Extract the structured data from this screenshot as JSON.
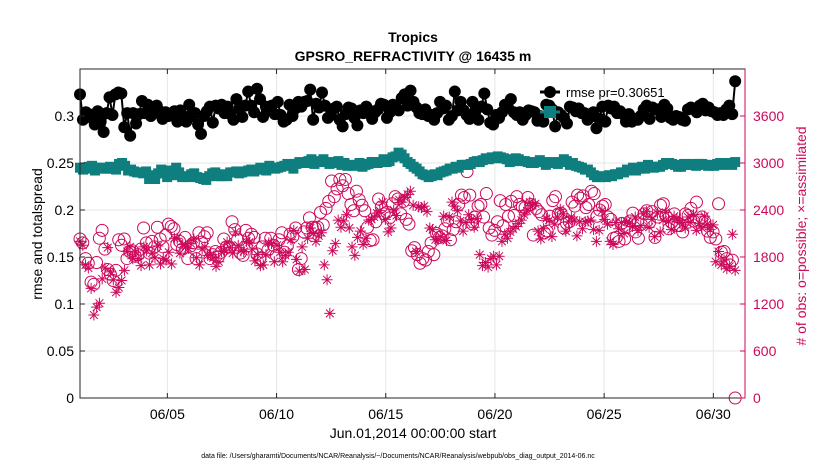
{
  "chart_data": {
    "type": "line",
    "title": "Tropics",
    "subtitle": "GPSRO_REFRACTIVITY @ 16435 m",
    "xlabel": "Jun.01,2014 00:00:00 start",
    "ylabel_left": "rmse and totalspread",
    "ylabel_right": "# of obs: o=possible; ×=assimilated",
    "footnote": "data file: /Users/gharamti/Documents/NCAR/Reanalysis/~/Documents/NCAR/Reanalysis/webpub/obs_diag_output_2014-06.nc",
    "xlim": [
      1.0,
      31.45
    ],
    "ylim_left": [
      0,
      0.35
    ],
    "ylim_right": [
      0,
      4200
    ],
    "x_ticks": [
      5,
      10,
      15,
      20,
      25,
      30
    ],
    "x_tick_labels": [
      "06/05",
      "06/10",
      "06/15",
      "06/20",
      "06/25",
      "06/30"
    ],
    "y_left_ticks": [
      0,
      0.05,
      0.1,
      0.15,
      0.2,
      0.25,
      0.3
    ],
    "y_left_tick_labels": [
      "0",
      "0.05",
      "0.1",
      "0.15",
      "0.2",
      "0.25",
      "0.3"
    ],
    "y_right_ticks": [
      0,
      600,
      1200,
      1800,
      2400,
      3000,
      3600
    ],
    "y_right_tick_labels": [
      "0",
      "600",
      "1200",
      "1800",
      "2400",
      "3000",
      "3600"
    ],
    "legend_position": "top-right",
    "series": [
      {
        "name": "rmse pr=0.30651",
        "legend_label": "rmse pr=0.30651",
        "color": "#000000",
        "marker": "circle-filled",
        "axis": "left",
        "values": [
          0.323,
          0.296,
          0.304,
          0.302,
          0.298,
          0.291,
          0.305,
          0.294,
          0.283,
          0.303,
          0.32,
          0.301,
          0.323,
          0.325,
          0.324,
          0.288,
          0.303,
          0.279,
          0.303,
          0.292,
          0.302,
          0.316,
          0.303,
          0.312,
          0.3,
          0.303,
          0.311,
          0.305,
          0.297,
          0.304,
          0.3,
          0.302,
          0.305,
          0.294,
          0.306,
          0.3,
          0.294,
          0.312,
          0.3,
          0.303,
          0.291,
          0.281,
          0.3,
          0.305,
          0.31,
          0.293,
          0.311,
          0.308,
          0.312,
          0.303,
          0.31,
          0.302,
          0.296,
          0.318,
          0.308,
          0.299,
          0.311,
          0.326,
          0.311,
          0.304,
          0.329,
          0.318,
          0.299,
          0.31,
          0.306,
          0.311,
          0.302,
          0.315,
          0.301,
          0.294,
          0.296,
          0.312,
          0.3,
          0.308,
          0.315,
          0.31,
          0.315,
          0.316,
          0.328,
          0.296,
          0.313,
          0.309,
          0.325,
          0.311,
          0.298,
          0.301,
          0.308,
          0.31,
          0.296,
          0.289,
          0.302,
          0.309,
          0.308,
          0.298,
          0.29,
          0.306,
          0.303,
          0.31,
          0.306,
          0.297,
          0.304,
          0.307,
          0.313,
          0.312,
          0.298,
          0.304,
          0.312,
          0.309,
          0.306,
          0.319,
          0.323,
          0.311,
          0.327,
          0.315,
          0.309,
          0.303,
          0.302,
          0.307,
          0.3,
          0.301,
          0.296,
          0.303,
          0.315,
          0.308,
          0.311,
          0.296,
          0.3,
          0.326,
          0.306,
          0.315,
          0.306,
          0.301,
          0.297,
          0.315,
          0.306,
          0.296,
          0.31,
          0.324,
          0.307,
          0.293,
          0.291,
          0.301,
          0.298,
          0.304,
          0.312,
          0.309,
          0.318,
          0.304,
          0.301,
          0.304,
          0.296,
          0.301,
          0.306,
          0.305,
          0.304,
          0.295,
          0.3,
          0.294,
          0.312,
          0.311,
          0.307,
          0.289,
          0.304,
          0.301,
          0.298,
          0.292,
          0.31,
          0.309,
          0.305,
          0.308,
          0.303,
          0.303,
          0.296,
          0.299,
          0.304,
          0.287,
          0.297,
          0.31,
          0.294,
          0.311,
          0.308,
          0.31,
          0.303,
          0.305,
          0.302,
          0.294,
          0.302,
          0.294,
          0.297,
          0.296,
          0.3,
          0.307,
          0.311,
          0.297,
          0.309,
          0.307,
          0.307,
          0.299,
          0.312,
          0.308,
          0.298,
          0.296,
          0.3,
          0.299,
          0.296,
          0.295,
          0.307,
          0.309,
          0.307,
          0.304,
          0.311,
          0.313,
          0.306,
          0.309,
          0.305,
          0.304,
          0.301,
          0.303,
          0.301,
          0.307,
          0.311,
          0.302,
          0.337
        ]
      },
      {
        "name": "totalspread",
        "color": "#0e7e7e",
        "marker": "square-filled",
        "axis": "left",
        "values": [
          0.245,
          0.243,
          0.244,
          0.246,
          0.247,
          0.242,
          0.245,
          0.245,
          0.244,
          0.244,
          0.246,
          0.244,
          0.243,
          0.249,
          0.25,
          0.247,
          0.242,
          0.243,
          0.241,
          0.24,
          0.24,
          0.239,
          0.241,
          0.233,
          0.237,
          0.233,
          0.239,
          0.243,
          0.239,
          0.235,
          0.242,
          0.237,
          0.245,
          0.24,
          0.235,
          0.236,
          0.235,
          0.238,
          0.239,
          0.235,
          0.234,
          0.233,
          0.232,
          0.236,
          0.239,
          0.24,
          0.236,
          0.236,
          0.238,
          0.236,
          0.24,
          0.24,
          0.241,
          0.239,
          0.24,
          0.241,
          0.242,
          0.243,
          0.241,
          0.243,
          0.245,
          0.243,
          0.242,
          0.247,
          0.245,
          0.244,
          0.245,
          0.246,
          0.247,
          0.249,
          0.248,
          0.244,
          0.249,
          0.251,
          0.25,
          0.25,
          0.252,
          0.254,
          0.249,
          0.251,
          0.252,
          0.254,
          0.251,
          0.249,
          0.25,
          0.251,
          0.252,
          0.248,
          0.25,
          0.247,
          0.248,
          0.247,
          0.248,
          0.25,
          0.246,
          0.248,
          0.249,
          0.251,
          0.251,
          0.25,
          0.251,
          0.254,
          0.251,
          0.252,
          0.256,
          0.257,
          0.261,
          0.259,
          0.255,
          0.251,
          0.249,
          0.246,
          0.244,
          0.241,
          0.238,
          0.237,
          0.235,
          0.236,
          0.238,
          0.237,
          0.24,
          0.241,
          0.242,
          0.244,
          0.244,
          0.246,
          0.245,
          0.248,
          0.248,
          0.248,
          0.249,
          0.251,
          0.252,
          0.251,
          0.253,
          0.255,
          0.254,
          0.256,
          0.255,
          0.257,
          0.256,
          0.255,
          0.254,
          0.251,
          0.252,
          0.255,
          0.254,
          0.252,
          0.252,
          0.251,
          0.25,
          0.25,
          0.251,
          0.253,
          0.251,
          0.248,
          0.25,
          0.251,
          0.25,
          0.249,
          0.251,
          0.254,
          0.252,
          0.248,
          0.25,
          0.247,
          0.246,
          0.245,
          0.243,
          0.243,
          0.24,
          0.237,
          0.235,
          0.235,
          0.236,
          0.235,
          0.237,
          0.236,
          0.238,
          0.238,
          0.24,
          0.24,
          0.243,
          0.242,
          0.245,
          0.242,
          0.244,
          0.246,
          0.244,
          0.248,
          0.246,
          0.245,
          0.246,
          0.246,
          0.248,
          0.25,
          0.25,
          0.249,
          0.248,
          0.246,
          0.246,
          0.249,
          0.248,
          0.248,
          0.249,
          0.247,
          0.249,
          0.249,
          0.248,
          0.247,
          0.248,
          0.247,
          0.249,
          0.25,
          0.248,
          0.25,
          0.249,
          0.248,
          0.251
        ]
      },
      {
        "name": "# of obs possible",
        "color": "#cc0a5b",
        "marker": "circle-open",
        "axis": "right",
        "values": [
          2030,
          1980,
          1780,
          1720,
          1480,
          1450,
          1730,
          2040,
          2140,
          1900,
          1640,
          1580,
          1500,
          1630,
          2020,
          1950,
          2030,
          1780,
          1870,
          1880,
          1810,
          1830,
          1900,
          2170,
          1980,
          1850,
          2000,
          1930,
          2180,
          2030,
          1930,
          2080,
          2220,
          2190,
          2160,
          1960,
          2000,
          1900,
          2050,
          1780,
          1940,
          1980,
          1780,
          2110,
          1990,
          2060,
          2110,
          1780,
          1830,
          1870,
          1800,
          1860,
          2030,
          1930,
          1930,
          2250,
          2150,
          2020,
          1850,
          1820,
          2140,
          2040,
          2090,
          2050,
          1840,
          1780,
          1930,
          2040,
          1890,
          2040,
          1950,
          1820,
          2020,
          2110,
          1860,
          1940,
          2090,
          2060,
          2170,
          1640,
          1780,
          2120,
          2170,
          2300,
          2180,
          2170,
          2180,
          2370,
          2210,
          2420,
          2510,
          2770,
          2570,
          2670,
          2790,
          2710,
          2790,
          2610,
          2470,
          2390,
          2640,
          2530,
          2460,
          2390,
          2180,
          2010,
          2020,
          2250,
          2540,
          2440,
          2350,
          2370,
          2300,
          2480,
          2570,
          2540,
          2350,
          2510,
          2280,
          2220,
          1880,
          1920,
          1830,
          1720,
          1780,
          1760,
          1870,
          1980,
          1830,
          2100,
          2050,
          2070,
          2160,
          2260,
          2020,
          2150,
          2250,
          2470,
          2590,
          2560,
          2890,
          2590,
          2220,
          2310,
          2450,
          2470,
          2310,
          2610,
          2170,
          2080,
          2140,
          2250,
          2520,
          2200,
          2470,
          2320,
          2510,
          2330,
          2570,
          2470,
          2440,
          2430,
          2560,
          2470,
          2080,
          2420,
          2380,
          2340,
          2110,
          2130,
          2320,
          2520,
          2570,
          2350,
          2360,
          2170,
          2230,
          2250,
          2500,
          2450,
          2590,
          2550,
          2580,
          2430,
          2470,
          2640,
          2610,
          2320,
          2400,
          2450,
          2470,
          2310,
          2280,
          2040,
          2050,
          2000,
          2230,
          2030,
          2190,
          2260,
          2360,
          2120,
          2040,
          2220,
          2350,
          2390,
          2240,
          2380,
          2050,
          2310,
          2460,
          2480,
          2320,
          2160,
          2240,
          2350,
          2200,
          2200,
          2120,
          2350,
          2330,
          2420,
          2260,
          2500,
          2270,
          2310,
          2250,
          2130,
          2050,
          2120,
          2030,
          2480,
          1860,
          1870,
          1780,
          1700,
          1760,
          0
        ]
      },
      {
        "name": "# of obs assimilated",
        "color": "#cc0a5b",
        "marker": "asterisk",
        "axis": "right",
        "values": [
          2000,
          1950,
          1700,
          1660,
          1400,
          1060,
          1160,
          1210,
          1520,
          1660,
          1920,
          1610,
          1510,
          1350,
          1410,
          1500,
          1630,
          1870,
          1930,
          1780,
          1860,
          1780,
          1690,
          1930,
          1880,
          1700,
          1850,
          1790,
          1940,
          1710,
          1780,
          1760,
          1860,
          1710,
          2040,
          2040,
          1850,
          1960,
          1930,
          1910,
          1970,
          2030,
          1790,
          1700,
          1900,
          1930,
          1820,
          1830,
          1790,
          1680,
          1740,
          1870,
          1880,
          1990,
          1920,
          1850,
          2120,
          1950,
          1880,
          1870,
          2000,
          1990,
          1900,
          1750,
          1830,
          1690,
          1700,
          1830,
          1980,
          1970,
          1740,
          1950,
          1860,
          1740,
          1820,
          1860,
          2020,
          2140,
          1770,
          1620,
          1930,
          1640,
          2040,
          2170,
          2100,
          2000,
          2070,
          2110,
          1700,
          1510,
          1080,
          1880,
          1970,
          2270,
          2180,
          2260,
          2340,
          2170,
          1930,
          1820,
          2050,
          2130,
          1960,
          2040,
          2270,
          2280,
          2310,
          2360,
          2390,
          2500,
          2280,
          2120,
          2170,
          2400,
          2330,
          2530,
          2500,
          2560,
          2600,
          2640,
          2460,
          1870,
          2440,
          2430,
          2450,
          2380,
          2170,
          2150,
          2020,
          2020,
          2060,
          2320,
          2010,
          2310,
          2500,
          2450,
          2390,
          2260,
          2130,
          2240,
          2340,
          2280,
          2180,
          2290,
          1830,
          1690,
          1730,
          1670,
          1780,
          1810,
          1700,
          1810,
          2000,
          2090,
          2040,
          2120,
          2160,
          2190,
          2230,
          2270,
          2340,
          2390,
          2500,
          2460,
          2480,
          2130,
          2030,
          2160,
          2290,
          2270,
          2060,
          2220,
          2310,
          2410,
          2350,
          2130,
          2250,
          2310,
          2270,
          2070,
          2250,
          2160,
          2250,
          2260,
          2270,
          2150,
          2000,
          2140,
          2390,
          2280,
          2220,
          2000,
          1960,
          2240,
          2160,
          2240,
          2100,
          2250,
          2230,
          2190,
          2310,
          2140,
          2200,
          2350,
          2380,
          2180,
          2280,
          2060,
          2360,
          2120,
          2270,
          2370,
          2260,
          2150,
          2320,
          2290,
          2240,
          2220,
          2170,
          2310,
          2240,
          2340,
          2140,
          2230,
          2170,
          2320,
          2220,
          2150,
          2210,
          1740,
          1870,
          1700,
          1760,
          1650,
          1680,
          2090,
          1630
        ]
      }
    ]
  }
}
